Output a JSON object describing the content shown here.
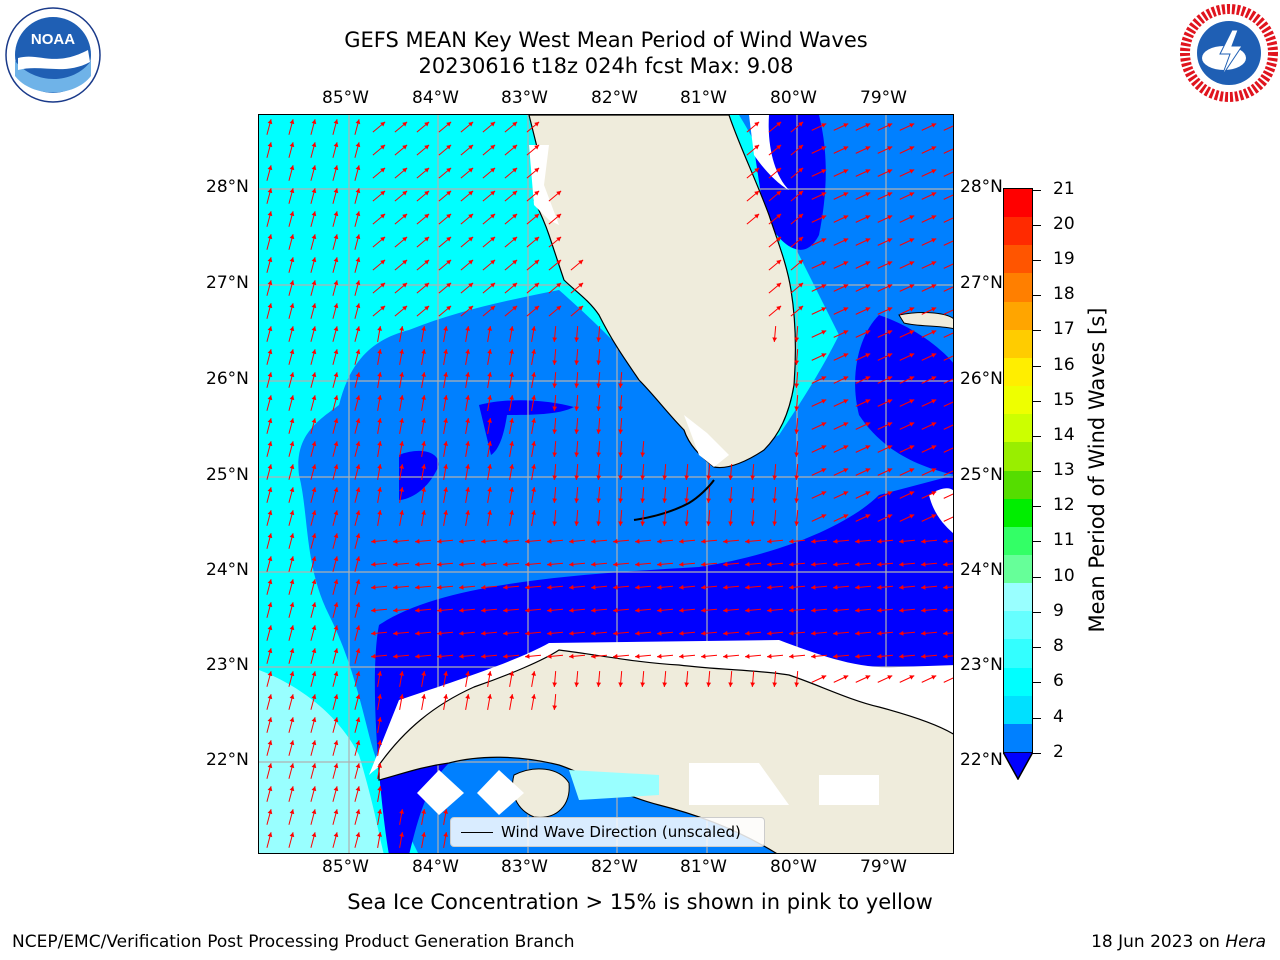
{
  "title_line1": "GEFS MEAN Key West Mean Period of Wind Waves",
  "title_line2": "20230616 t18z 024h fcst   Max: 9.08",
  "lon_labels": [
    "85°W",
    "84°W",
    "83°W",
    "82°W",
    "81°W",
    "80°W",
    "79°W"
  ],
  "lat_labels": [
    "28°N",
    "27°N",
    "26°N",
    "25°N",
    "24°N",
    "23°N",
    "22°N"
  ],
  "colorbar": {
    "label": "Mean Period of Wind Waves [s]",
    "ticks": [
      "21",
      "20",
      "19",
      "18",
      "17",
      "16",
      "15",
      "14",
      "13",
      "12",
      "11",
      "10",
      "9",
      "8",
      "6",
      "4",
      "2"
    ],
    "colors": [
      "#ff0000",
      "#ff2a00",
      "#ff5500",
      "#ff7f00",
      "#ffa500",
      "#ffcc00",
      "#ffee00",
      "#eeff00",
      "#ccff00",
      "#99ee00",
      "#55dd00",
      "#00ee00",
      "#33ff66",
      "#66ff99",
      "#99ffff",
      "#66ffff",
      "#33ffff",
      "#00ffff",
      "#00e0ff",
      "#0080ff"
    ],
    "extend_color": "#0000ff"
  },
  "legend_label": "Wind Wave Direction (unscaled)",
  "note": "Sea Ice Concentration > 15% is shown in pink to yellow",
  "footer_left": "NCEP/EMC/Verification Post Processing Product Generation Branch",
  "footer_right_date": "18 Jun 2023 on ",
  "footer_right_host": "Hera",
  "logo_left_text": "NOAA",
  "colors": {
    "land": "#efecdc",
    "light_cyan": "#99ffff",
    "cyan": "#00ffff",
    "azure": "#0080ff",
    "blue": "#0000ff",
    "arrow": "#ff0000",
    "grid": "#b0b0b0"
  }
}
